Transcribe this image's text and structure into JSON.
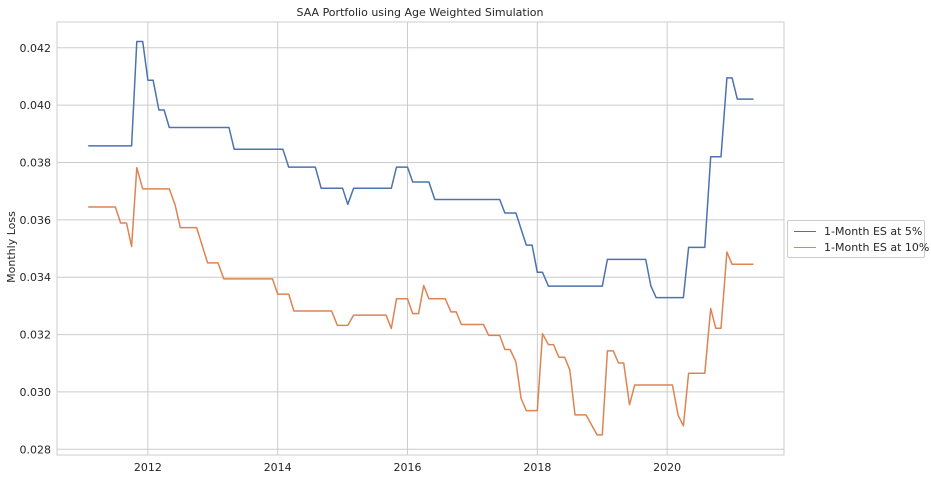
{
  "chart_data": {
    "type": "line",
    "title": "SAA Portfolio using Age Weighted Simulation",
    "xlabel": "",
    "ylabel": "Monthly Loss",
    "xlim": [
      2010.6,
      2021.8
    ],
    "ylim": [
      0.0278,
      0.0429
    ],
    "x_ticks": [
      2012,
      2014,
      2016,
      2018,
      2020
    ],
    "y_ticks": [
      0.028,
      0.03,
      0.032,
      0.034,
      0.036,
      0.038,
      0.04,
      0.042
    ],
    "grid": true,
    "legend_position": "outside-right",
    "series": [
      {
        "name": "1-Month ES at 5%",
        "color": "#4c72b0",
        "points": [
          [
            2011.08,
            0.03858
          ],
          [
            2011.75,
            0.03858
          ],
          [
            2011.83,
            0.04222
          ],
          [
            2011.92,
            0.04222
          ],
          [
            2012.0,
            0.04087
          ],
          [
            2012.08,
            0.04087
          ],
          [
            2012.17,
            0.03983
          ],
          [
            2012.25,
            0.03983
          ],
          [
            2012.33,
            0.03922
          ],
          [
            2013.25,
            0.03922
          ],
          [
            2013.33,
            0.03846
          ],
          [
            2014.08,
            0.03846
          ],
          [
            2014.17,
            0.03784
          ],
          [
            2014.58,
            0.03784
          ],
          [
            2014.67,
            0.0371
          ],
          [
            2015.0,
            0.0371
          ],
          [
            2015.08,
            0.03654
          ],
          [
            2015.17,
            0.0371
          ],
          [
            2015.75,
            0.0371
          ],
          [
            2015.83,
            0.03784
          ],
          [
            2016.0,
            0.03784
          ],
          [
            2016.08,
            0.03732
          ],
          [
            2016.33,
            0.03732
          ],
          [
            2016.42,
            0.03671
          ],
          [
            2017.42,
            0.03671
          ],
          [
            2017.5,
            0.03624
          ],
          [
            2017.67,
            0.03624
          ],
          [
            2017.83,
            0.03512
          ],
          [
            2017.92,
            0.03512
          ],
          [
            2018.0,
            0.03417
          ],
          [
            2018.08,
            0.03417
          ],
          [
            2018.17,
            0.03369
          ],
          [
            2019.0,
            0.03369
          ],
          [
            2019.08,
            0.03462
          ],
          [
            2019.67,
            0.03462
          ],
          [
            2019.75,
            0.03369
          ],
          [
            2019.83,
            0.03329
          ],
          [
            2020.25,
            0.03329
          ],
          [
            2020.33,
            0.03504
          ],
          [
            2020.58,
            0.03504
          ],
          [
            2020.67,
            0.0382
          ],
          [
            2020.83,
            0.0382
          ],
          [
            2020.92,
            0.04095
          ],
          [
            2021.0,
            0.04095
          ],
          [
            2021.08,
            0.04021
          ],
          [
            2021.33,
            0.04021
          ]
        ]
      },
      {
        "name": "1-Month ES at 10%",
        "color": "#dd8452",
        "points": [
          [
            2011.08,
            0.03645
          ],
          [
            2011.5,
            0.03645
          ],
          [
            2011.58,
            0.03589
          ],
          [
            2011.67,
            0.03589
          ],
          [
            2011.75,
            0.03507
          ],
          [
            2011.83,
            0.03782
          ],
          [
            2011.92,
            0.03708
          ],
          [
            2012.33,
            0.03708
          ],
          [
            2012.42,
            0.03652
          ],
          [
            2012.5,
            0.03573
          ],
          [
            2012.75,
            0.03573
          ],
          [
            2012.92,
            0.0345
          ],
          [
            2013.08,
            0.0345
          ],
          [
            2013.17,
            0.03394
          ],
          [
            2013.92,
            0.03394
          ],
          [
            2014.0,
            0.03341
          ],
          [
            2014.17,
            0.03341
          ],
          [
            2014.25,
            0.03282
          ],
          [
            2014.83,
            0.03282
          ],
          [
            2014.92,
            0.03232
          ],
          [
            2015.08,
            0.03232
          ],
          [
            2015.17,
            0.03268
          ],
          [
            2015.67,
            0.03268
          ],
          [
            2015.75,
            0.03221
          ],
          [
            2015.83,
            0.03325
          ],
          [
            2016.0,
            0.03325
          ],
          [
            2016.08,
            0.03273
          ],
          [
            2016.17,
            0.03273
          ],
          [
            2016.25,
            0.03371
          ],
          [
            2016.33,
            0.03325
          ],
          [
            2016.58,
            0.03325
          ],
          [
            2016.67,
            0.03279
          ],
          [
            2016.75,
            0.03279
          ],
          [
            2016.83,
            0.03235
          ],
          [
            2017.17,
            0.03235
          ],
          [
            2017.25,
            0.03197
          ],
          [
            2017.42,
            0.03197
          ],
          [
            2017.5,
            0.03148
          ],
          [
            2017.58,
            0.03148
          ],
          [
            2017.67,
            0.03105
          ],
          [
            2017.75,
            0.02977
          ],
          [
            2017.83,
            0.02935
          ],
          [
            2018.0,
            0.02935
          ],
          [
            2018.08,
            0.03203
          ],
          [
            2018.17,
            0.03165
          ],
          [
            2018.25,
            0.03165
          ],
          [
            2018.33,
            0.03121
          ],
          [
            2018.42,
            0.03121
          ],
          [
            2018.5,
            0.03077
          ],
          [
            2018.58,
            0.0292
          ],
          [
            2018.75,
            0.0292
          ],
          [
            2018.92,
            0.0285
          ],
          [
            2019.0,
            0.0285
          ],
          [
            2019.08,
            0.03143
          ],
          [
            2019.17,
            0.03143
          ],
          [
            2019.25,
            0.03101
          ],
          [
            2019.33,
            0.03101
          ],
          [
            2019.42,
            0.02955
          ],
          [
            2019.5,
            0.03024
          ],
          [
            2020.08,
            0.03024
          ],
          [
            2020.17,
            0.02918
          ],
          [
            2020.25,
            0.02882
          ],
          [
            2020.33,
            0.03065
          ],
          [
            2020.58,
            0.03065
          ],
          [
            2020.67,
            0.03291
          ],
          [
            2020.75,
            0.03222
          ],
          [
            2020.83,
            0.03222
          ],
          [
            2020.92,
            0.03488
          ],
          [
            2021.0,
            0.03445
          ],
          [
            2021.33,
            0.03445
          ]
        ]
      }
    ]
  }
}
